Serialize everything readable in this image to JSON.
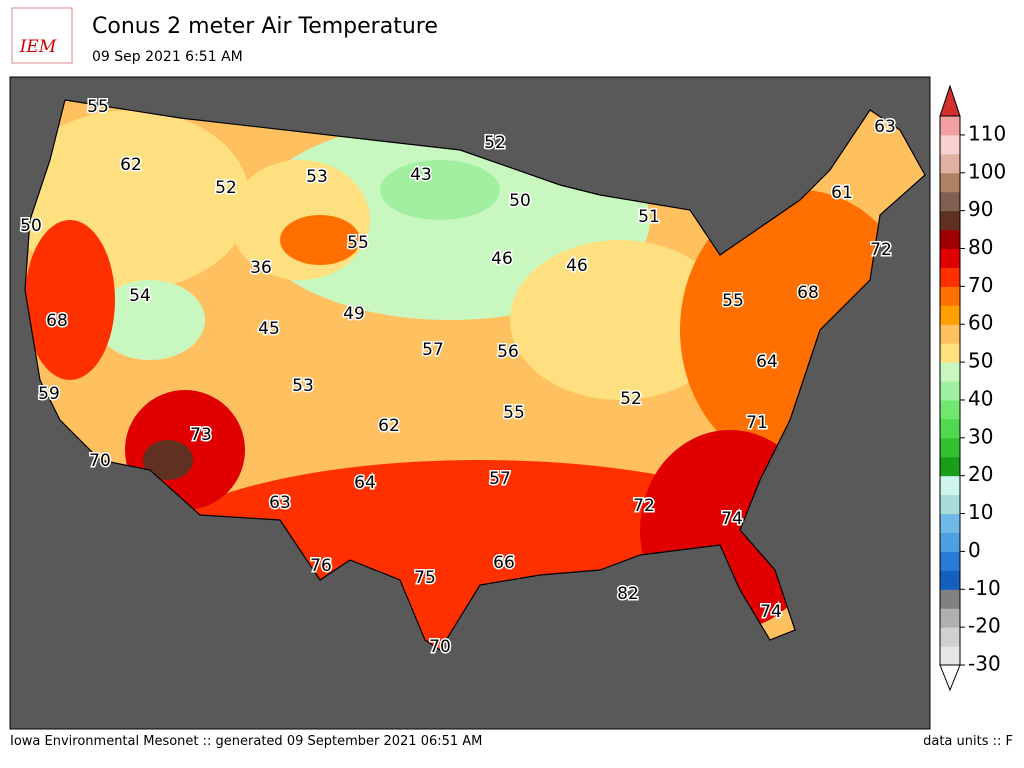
{
  "header": {
    "logo": "IEM",
    "title": "Conus 2 meter Air Temperature",
    "subtitle": "09 Sep 2021 6:51 AM"
  },
  "map": {
    "labels": [
      55,
      62,
      50,
      68,
      59,
      70,
      52,
      53,
      43,
      52,
      50,
      46,
      46,
      51,
      36,
      55,
      54,
      45,
      49,
      57,
      56,
      53,
      62,
      73,
      63,
      64,
      55,
      57,
      52,
      76,
      75,
      66,
      70,
      82,
      72,
      74,
      74,
      71,
      64,
      55,
      68,
      61,
      63,
      72
    ]
  },
  "colorbar": {
    "lim": [
      -30,
      115
    ],
    "ticks": [
      -30,
      -20,
      -10,
      0,
      10,
      20,
      30,
      40,
      50,
      60,
      70,
      80,
      90,
      100,
      110
    ],
    "colors": [
      "#e6e6e6",
      "#d0d0d0",
      "#b0b0b0",
      "#808080",
      "#1560bd",
      "#2a7bd6",
      "#4fa0e0",
      "#70b8e8",
      "#a8dcd8",
      "#cff5ef",
      "#1a9e1a",
      "#30c030",
      "#50d850",
      "#70e870",
      "#a0f0a0",
      "#c8f8c0",
      "#ffe080",
      "#ffc060",
      "#ffa000",
      "#ff7000",
      "#ff3000",
      "#e00000",
      "#a00000",
      "#603020",
      "#806050",
      "#b08060",
      "#e0b0a0",
      "#f8d0d0",
      "#f0a0a0"
    ],
    "over_color": "#d03030",
    "under_color": "#ffffff"
  },
  "footer": {
    "left": "Iowa Environmental Mesonet :: generated 09 September 2021 06:51 AM",
    "right": "data units :: F"
  }
}
